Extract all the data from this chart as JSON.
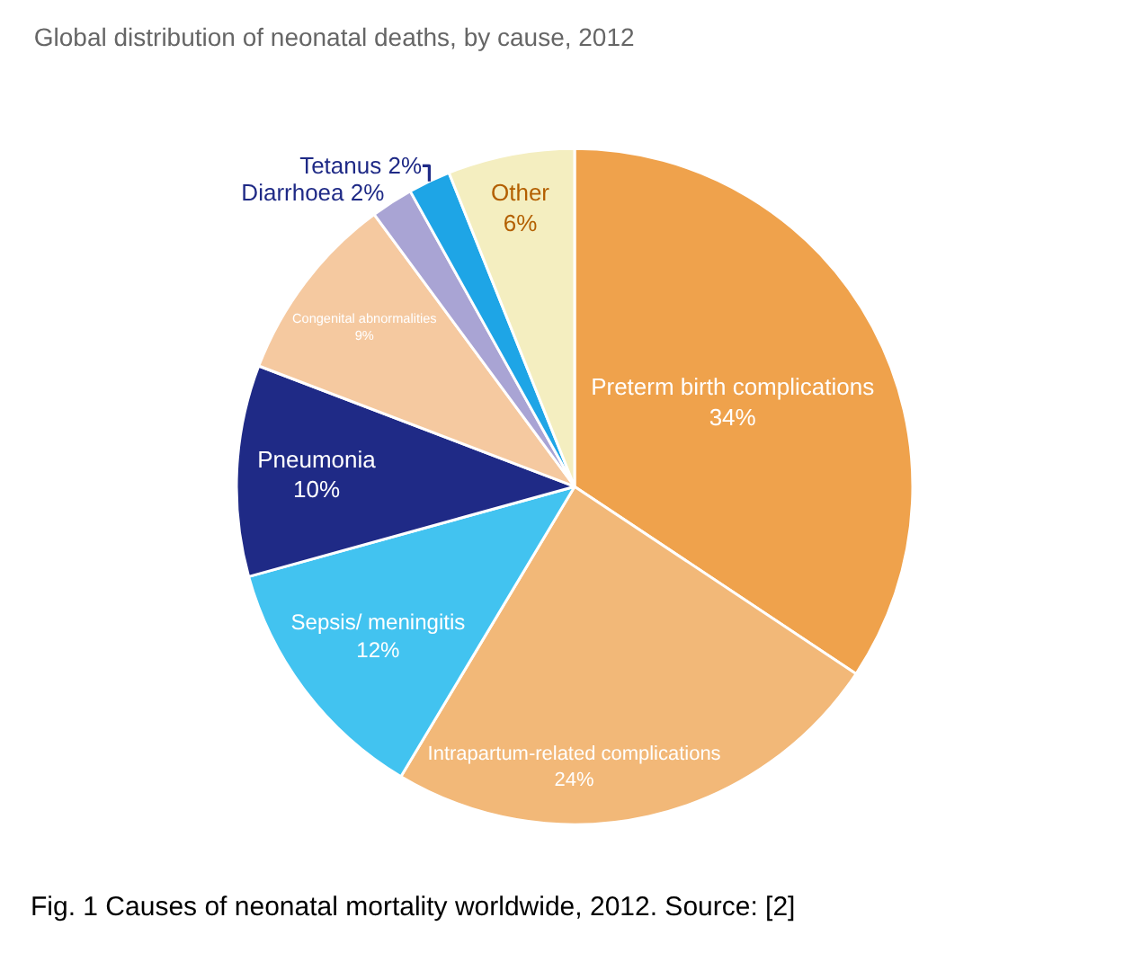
{
  "chart_data": {
    "type": "pie",
    "title": "Global distribution of neonatal deaths, by cause, 2012",
    "categories": [
      "Preterm birth complications",
      "Intrapartum-related complications",
      "Sepsis/ meningitis",
      "Pneumonia",
      "Congenital abnormalities",
      "Diarrhoea",
      "Tetanus",
      "Other"
    ],
    "values": [
      34,
      24,
      12,
      10,
      9,
      2,
      2,
      6
    ],
    "value_labels": [
      "34%",
      "24%",
      "12%",
      "10%",
      "9%",
      "2%",
      "2%",
      "6%"
    ],
    "colors": [
      "#efa24c",
      "#f2b878",
      "#42c3f0",
      "#1f2a86",
      "#f5c9a0",
      "#a9a4d4",
      "#1ea5e6",
      "#f4eec0"
    ],
    "annotations": [
      "Fig. 1 Causes of neonatal mortality worldwide, 2012. Source: [2]"
    ],
    "legend": false
  }
}
